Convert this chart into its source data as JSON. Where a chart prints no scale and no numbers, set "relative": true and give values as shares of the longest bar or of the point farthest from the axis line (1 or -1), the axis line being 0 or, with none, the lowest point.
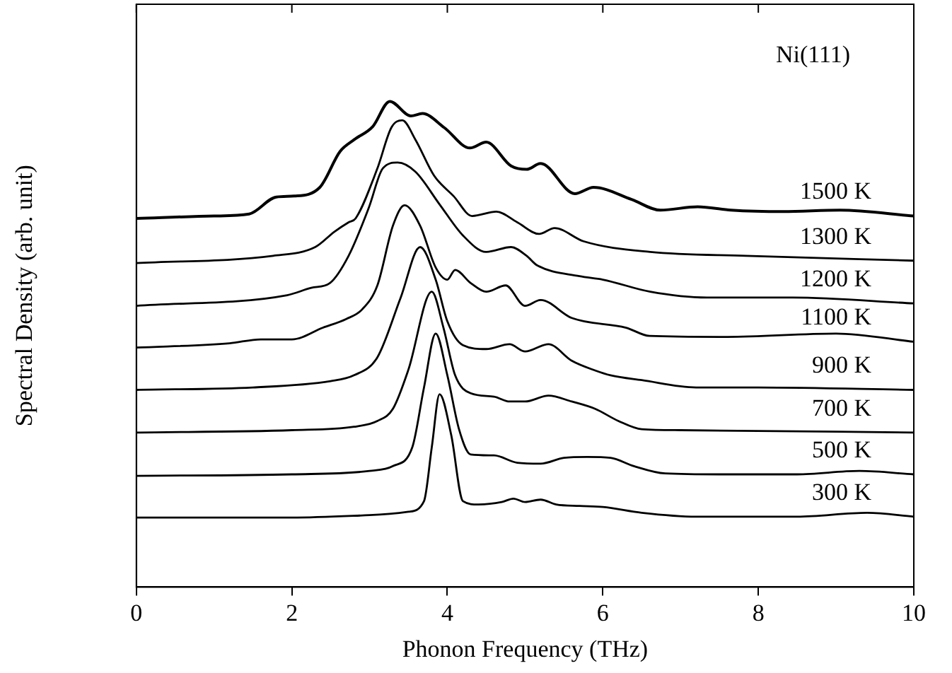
{
  "chart_data": {
    "type": "line",
    "relative": true,
    "xlabel": "Phonon Frequency (THz)",
    "ylabel": "Spectral Density (arb. unit)",
    "xlim": [
      0,
      10
    ],
    "xticks": [
      0,
      2,
      4,
      6,
      8,
      10
    ],
    "grid": false,
    "legend": false,
    "marker": "none",
    "line_style": "solid",
    "annotations": [
      "Ni(111)"
    ],
    "series": [
      {
        "name": "1500 K",
        "color": "#000000",
        "x": [
          0,
          1,
          1.45,
          1.8,
          2.03,
          2.36,
          2.62,
          2.8,
          3.04,
          3.26,
          3.53,
          3.68,
          3.96,
          4.29,
          4.5,
          4.82,
          5.02,
          5.2,
          5.64,
          5.88,
          6.37,
          6.74,
          7.22,
          7.65,
          8.32,
          9.05,
          10
        ],
        "values": [
          0.759,
          0.764,
          0.768,
          0.803,
          0.805,
          0.823,
          0.897,
          0.921,
          0.948,
          1,
          0.97,
          0.975,
          0.946,
          0.904,
          0.916,
          0.867,
          0.86,
          0.872,
          0.81,
          0.823,
          0.798,
          0.776,
          0.783,
          0.776,
          0.773,
          0.776,
          0.764
        ]
      },
      {
        "name": "1300 K",
        "color": "#000000",
        "x": [
          0,
          1.76,
          2.3,
          2.55,
          2.73,
          2.82,
          3.1,
          3.28,
          3.42,
          3.59,
          3.83,
          4.08,
          4.32,
          4.63,
          4.9,
          5.18,
          5.38,
          5.75,
          6.61,
          7.84,
          10
        ],
        "values": [
          0.667,
          0.682,
          0.7,
          0.732,
          0.751,
          0.759,
          0.862,
          0.946,
          0.961,
          0.921,
          0.847,
          0.805,
          0.764,
          0.773,
          0.751,
          0.727,
          0.739,
          0.712,
          0.69,
          0.682,
          0.672
        ]
      },
      {
        "name": "1200 K",
        "color": "#000000",
        "x": [
          0,
          1.94,
          2.25,
          2.49,
          2.73,
          2.99,
          3.17,
          3.36,
          3.59,
          3.9,
          4.2,
          4.5,
          4.82,
          5.02,
          5.15,
          5.7,
          6,
          6.61,
          7.34,
          8.44,
          10
        ],
        "values": [
          0.579,
          0.601,
          0.616,
          0.626,
          0.682,
          0.781,
          0.862,
          0.874,
          0.855,
          0.788,
          0.724,
          0.69,
          0.7,
          0.682,
          0.663,
          0.64,
          0.633,
          0.608,
          0.596,
          0.596,
          0.584
        ]
      },
      {
        "name": "1100 K",
        "color": "#000000",
        "x": [
          0,
          1.2,
          1.6,
          2,
          2.4,
          2.7,
          2.9,
          3.1,
          3.3,
          3.45,
          3.65,
          3.85,
          4,
          4.1,
          4.3,
          4.5,
          4.75,
          5,
          5.2,
          5.6,
          6.3,
          6.6,
          7.6,
          9,
          10
        ],
        "values": [
          0.493,
          0.502,
          0.51,
          0.51,
          0.534,
          0.552,
          0.571,
          0.621,
          0.744,
          0.786,
          0.744,
          0.658,
          0.633,
          0.653,
          0.626,
          0.608,
          0.621,
          0.579,
          0.591,
          0.554,
          0.534,
          0.517,
          0.515,
          0.522,
          0.505
        ]
      },
      {
        "name": "900 K",
        "color": "#000000",
        "x": [
          0,
          1.5,
          2.5,
          2.8,
          3.1,
          3.4,
          3.65,
          3.85,
          4,
          4.2,
          4.5,
          4.8,
          5,
          5.3,
          5.6,
          5.9,
          6.1,
          6.5,
          7.2,
          8,
          10
        ],
        "values": [
          0.406,
          0.411,
          0.424,
          0.436,
          0.473,
          0.596,
          0.7,
          0.633,
          0.547,
          0.498,
          0.49,
          0.5,
          0.485,
          0.5,
          0.466,
          0.446,
          0.436,
          0.426,
          0.411,
          0.411,
          0.406
        ]
      },
      {
        "name": "700 K",
        "color": "#000000",
        "x": [
          0,
          2,
          2.8,
          3.1,
          3.3,
          3.5,
          3.8,
          3.95,
          4.1,
          4.3,
          4.6,
          4.8,
          5,
          5.3,
          5.6,
          5.9,
          6.2,
          6.5,
          7,
          10
        ],
        "values": [
          0.318,
          0.323,
          0.33,
          0.342,
          0.367,
          0.448,
          0.608,
          0.534,
          0.436,
          0.399,
          0.392,
          0.382,
          0.382,
          0.394,
          0.382,
          0.367,
          0.342,
          0.325,
          0.323,
          0.318
        ]
      },
      {
        "name": "500 K",
        "color": "#000000",
        "x": [
          0,
          2,
          3,
          3.3,
          3.55,
          3.7,
          3.85,
          4,
          4.15,
          4.3,
          4.6,
          4.9,
          5.2,
          5.5,
          5.8,
          6.1,
          6.4,
          6.8,
          7.5,
          8.5,
          9.3,
          10
        ],
        "values": [
          0.229,
          0.232,
          0.239,
          0.249,
          0.288,
          0.411,
          0.522,
          0.436,
          0.325,
          0.273,
          0.271,
          0.256,
          0.254,
          0.266,
          0.268,
          0.266,
          0.249,
          0.234,
          0.232,
          0.232,
          0.239,
          0.232
        ]
      },
      {
        "name": "300 K",
        "color": "#000000",
        "x": [
          0,
          2,
          3,
          3.5,
          3.7,
          3.8,
          3.9,
          4.05,
          4.2,
          4.4,
          4.7,
          4.85,
          5,
          5.2,
          5.4,
          5.7,
          6,
          6.5,
          7.2,
          8.5,
          9.4,
          10
        ],
        "values": [
          0.143,
          0.143,
          0.148,
          0.155,
          0.177,
          0.288,
          0.397,
          0.313,
          0.177,
          0.17,
          0.175,
          0.182,
          0.175,
          0.18,
          0.17,
          0.167,
          0.165,
          0.153,
          0.145,
          0.145,
          0.153,
          0.145
        ]
      }
    ]
  }
}
